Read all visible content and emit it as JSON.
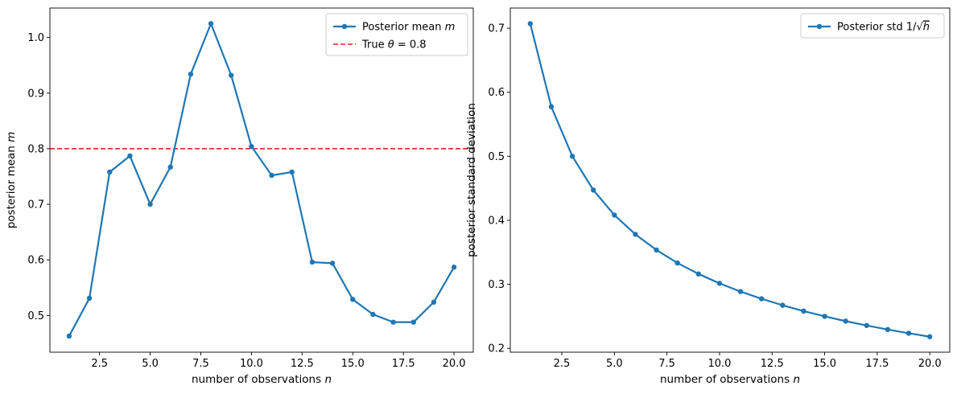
{
  "chart_data": [
    {
      "type": "line",
      "xlabel": "number of observations",
      "xlabel_var": "n",
      "ylabel": "posterior mean",
      "ylabel_var": "m",
      "xlim": [
        0.05,
        20.95
      ],
      "ylim": [
        0.434,
        1.053
      ],
      "xticks": [
        2.5,
        5.0,
        7.5,
        10.0,
        12.5,
        15.0,
        17.5,
        20.0
      ],
      "xtick_labels": [
        "2.5",
        "5.0",
        "7.5",
        "10.0",
        "12.5",
        "15.0",
        "17.5",
        "20.0"
      ],
      "yticks": [
        0.5,
        0.6,
        0.7,
        0.8,
        0.9,
        1.0
      ],
      "ytick_labels": [
        "0.5",
        "0.6",
        "0.7",
        "0.8",
        "0.9",
        "1.0"
      ],
      "legend_position": "top-right",
      "grid": false,
      "series": [
        {
          "name": "Posterior mean",
          "name_var": "m",
          "color": "#1f77b4",
          "style": "solid-with-markers",
          "x": [
            1,
            2,
            3,
            4,
            5,
            6,
            7,
            8,
            9,
            10,
            11,
            12,
            13,
            14,
            15,
            16,
            17,
            18,
            19,
            20
          ],
          "y": [
            0.463,
            0.531,
            0.758,
            0.787,
            0.7,
            0.767,
            0.934,
            1.025,
            0.932,
            0.804,
            0.752,
            0.758,
            0.596,
            0.594,
            0.529,
            0.502,
            0.488,
            0.488,
            0.524,
            0.587
          ]
        }
      ],
      "reference_lines": [
        {
          "name": "True",
          "name_var": "θ",
          "name_value": "0.8",
          "y": 0.8,
          "color": "#d62728",
          "style": "dashed"
        }
      ]
    },
    {
      "type": "line",
      "xlabel": "number of observations",
      "xlabel_var": "n",
      "ylabel": "posterior standard deviation",
      "xlim": [
        0.05,
        20.95
      ],
      "ylim": [
        0.194,
        0.7315
      ],
      "xticks": [
        2.5,
        5.0,
        7.5,
        10.0,
        12.5,
        15.0,
        17.5,
        20.0
      ],
      "xtick_labels": [
        "2.5",
        "5.0",
        "7.5",
        "10.0",
        "12.5",
        "15.0",
        "17.5",
        "20.0"
      ],
      "yticks": [
        0.2,
        0.3,
        0.4,
        0.5,
        0.6,
        0.7
      ],
      "ytick_labels": [
        "0.2",
        "0.3",
        "0.4",
        "0.5",
        "0.6",
        "0.7"
      ],
      "legend_position": "top-right",
      "grid": false,
      "series": [
        {
          "name": "Posterior std 1/",
          "name_var": "h",
          "color": "#1f77b4",
          "style": "solid-with-markers",
          "x": [
            1,
            2,
            3,
            4,
            5,
            6,
            7,
            8,
            9,
            10,
            11,
            12,
            13,
            14,
            15,
            16,
            17,
            18,
            19,
            20
          ],
          "y": [
            0.7071,
            0.5774,
            0.5,
            0.4472,
            0.4082,
            0.378,
            0.3536,
            0.3333,
            0.3162,
            0.3015,
            0.2887,
            0.2774,
            0.2673,
            0.2582,
            0.25,
            0.2425,
            0.2357,
            0.2294,
            0.2236,
            0.2182
          ]
        }
      ]
    }
  ]
}
